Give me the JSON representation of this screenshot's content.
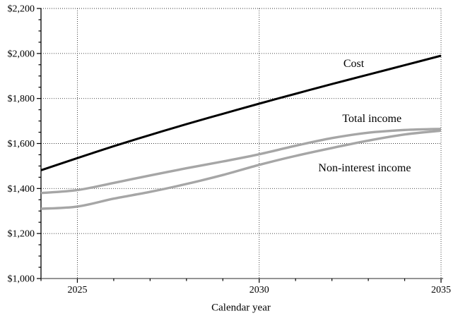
{
  "chart_data": {
    "type": "line",
    "title": "",
    "xlabel": "Calendar year",
    "ylabel": "",
    "xlim": [
      2024,
      2035
    ],
    "ylim": [
      1000,
      2200
    ],
    "grid": "dotted horizontal gridlines at $200 steps; dotted vertical gridlines at 2025, 2030, 2035; legend none (inline labels)",
    "x": [
      2024,
      2025,
      2026,
      2027,
      2028,
      2029,
      2030,
      2031,
      2032,
      2033,
      2034,
      2035
    ],
    "series": [
      {
        "name": "Cost",
        "color": "#000000",
        "width": 3,
        "values": [
          1481,
          1535,
          1588,
          1638,
          1686,
          1732,
          1777,
          1821,
          1864,
          1906,
          1948,
          1990
        ]
      },
      {
        "name": "Total income",
        "color": "#a6a6a6",
        "width": 3.4,
        "values": [
          1380,
          1393,
          1425,
          1458,
          1490,
          1520,
          1552,
          1590,
          1624,
          1648,
          1660,
          1665
        ]
      },
      {
        "name": "Non-interest income",
        "color": "#a6a6a6",
        "width": 3.4,
        "values": [
          1310,
          1320,
          1355,
          1385,
          1420,
          1460,
          1505,
          1545,
          1580,
          1613,
          1640,
          1657
        ]
      }
    ],
    "y_ticks": [
      {
        "value": 1000,
        "label": "$1,000"
      },
      {
        "value": 1200,
        "label": "$1,200"
      },
      {
        "value": 1400,
        "label": "$1,400"
      },
      {
        "value": 1600,
        "label": "$1,600"
      },
      {
        "value": 1800,
        "label": "$1,800"
      },
      {
        "value": 2000,
        "label": "$2,000"
      },
      {
        "value": 2200,
        "label": "$2,200"
      }
    ],
    "y_minor_tick_interval": 50,
    "x_ticks": [
      {
        "value": 2025,
        "label": "2025"
      },
      {
        "value": 2030,
        "label": "2030"
      },
      {
        "value": 2035,
        "label": "2035"
      }
    ],
    "x_minor_tick_interval": 1,
    "annotations": [
      {
        "text": "Cost",
        "x": 2032.6,
        "y": 1952
      },
      {
        "text": "Total income",
        "x": 2033.1,
        "y": 1708
      },
      {
        "text": "Non-interest income",
        "x": 2032.9,
        "y": 1489
      }
    ]
  }
}
